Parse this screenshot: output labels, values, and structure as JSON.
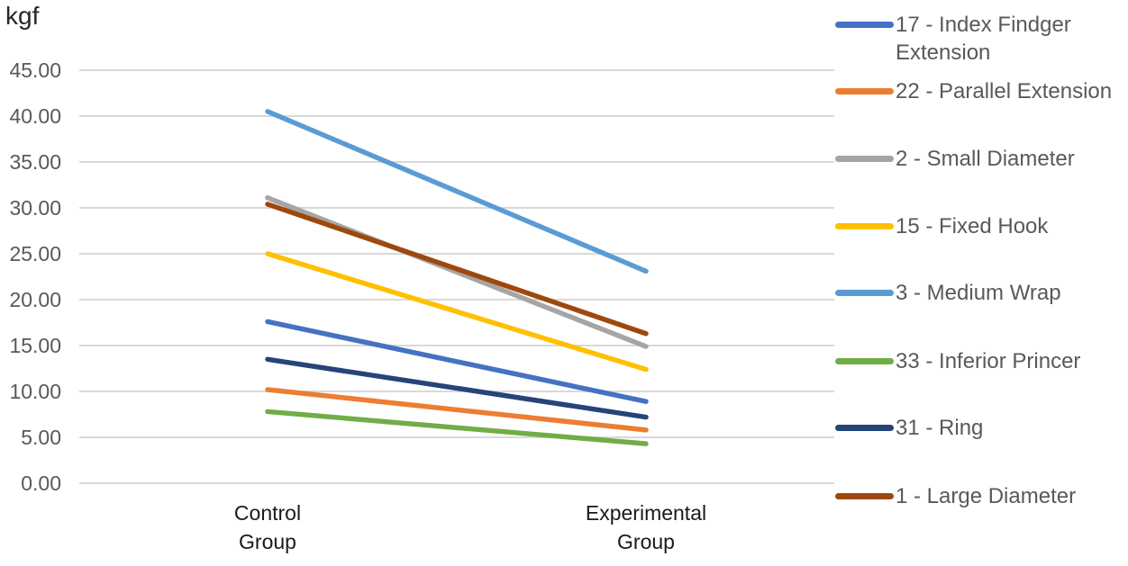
{
  "chart_data": {
    "type": "line",
    "title": "",
    "ylabel": "kgf",
    "xlabel": "",
    "categories": [
      "Control Group",
      "Experimental Group"
    ],
    "series": [
      {
        "name": "17 - Index Findger Extension",
        "color": "#4472C4",
        "values": [
          17.6,
          8.9
        ]
      },
      {
        "name": "22 - Parallel Extension",
        "color": "#ED7D31",
        "values": [
          10.2,
          5.8
        ]
      },
      {
        "name": "2 - Small Diameter",
        "color": "#A5A5A5",
        "values": [
          31.1,
          14.9
        ]
      },
      {
        "name": "15 - Fixed Hook",
        "color": "#FFC000",
        "values": [
          25.0,
          12.4
        ]
      },
      {
        "name": "3 - Medium Wrap",
        "color": "#5B9BD5",
        "values": [
          40.5,
          23.1
        ]
      },
      {
        "name": "33 - Inferior Princer",
        "color": "#70AD47",
        "values": [
          7.8,
          4.3
        ]
      },
      {
        "name": "31 - Ring",
        "color": "#264478",
        "values": [
          13.5,
          7.2
        ]
      },
      {
        "name": "1 - Large Diameter",
        "color": "#9E480E",
        "values": [
          30.4,
          16.3
        ]
      }
    ],
    "ylim": [
      0,
      45
    ],
    "ytick_step": 5,
    "ytick_decimals": 2,
    "grid": "horizontal",
    "legend_position": "right",
    "colors": {
      "gridline": "#D9D9D9",
      "y_tick_label": "#595959",
      "category_label": "#1a1a1a",
      "legend_text": "#595959",
      "axis_title": "#262626"
    }
  }
}
